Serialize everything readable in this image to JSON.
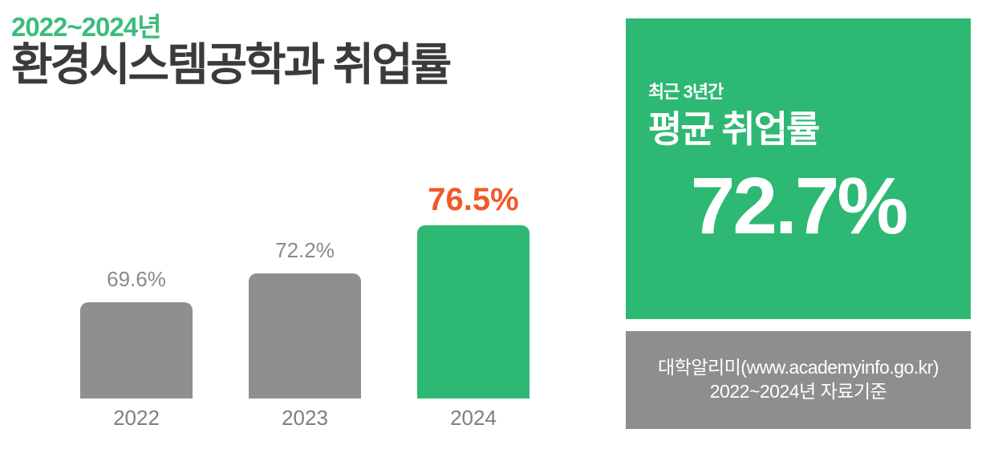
{
  "header": {
    "period_label": "2022~2024년",
    "title": "환경시스템공학과 취업률",
    "period_color": "#3CBC7C",
    "title_color": "#3B3B3B"
  },
  "chart_data": {
    "type": "bar",
    "title": "2022~2024년 환경시스템공학과 취업률",
    "categories": [
      "2022",
      "2023",
      "2024"
    ],
    "values": [
      69.6,
      72.2,
      76.5
    ],
    "value_labels": [
      "69.6%",
      "72.2%",
      "76.5%"
    ],
    "unit": "%",
    "highlight_index": 2,
    "bar_color": "#8F8F8F",
    "highlight_bar_color": "#2DB874",
    "label_color": "#8A8A8A",
    "highlight_label_color": "#F05A28",
    "category_color": "#7F7F7F",
    "ylim": [
      61,
      80
    ],
    "grid": false,
    "legend": false,
    "xlabel": "",
    "ylabel": ""
  },
  "summary_panel": {
    "background": "#2DB874",
    "kicker": "최근 3년간",
    "title": "평균 취업률",
    "value": "72.7%",
    "text_color": "#FFFFFF"
  },
  "source_panel": {
    "background": "#8E8E8E",
    "line1": "대학알리미(www.academyinfo.go.kr)",
    "line2": "2022~2024년 자료기준",
    "text_color": "#FFFFFF"
  }
}
